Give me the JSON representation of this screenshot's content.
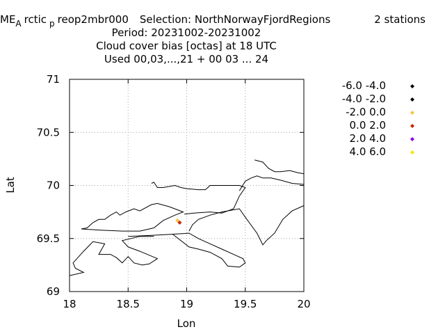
{
  "chart_data": {
    "type": "scatter",
    "title": {
      "line1_parts": [
        "ME",
        "A",
        "rctic",
        "p",
        "reop2mbr000"
      ],
      "selection": "Selection: NorthNorwayFjordRegions",
      "stations": "2 stations",
      "period": "Period: 20231002-20231002",
      "variable": "Cloud cover bias [octas] at  18 UTC",
      "used": "Used  00,03,...,21  + 00 03 ... 24"
    },
    "xlabel": "Lon",
    "ylabel": "Lat",
    "xlim": [
      18,
      20
    ],
    "ylim": [
      69,
      71
    ],
    "xticks": [
      "18",
      "18.5",
      "19",
      "19.5",
      "20"
    ],
    "yticks": [
      "69",
      "69.5",
      "70",
      "70.5",
      "71"
    ],
    "grid": true,
    "legend_position": "right",
    "legend": [
      {
        "label": "-6.0 -4.0",
        "color": "#000000"
      },
      {
        "label": "-4.0 -2.0",
        "color": "#000000"
      },
      {
        "label": "-2.0 0.0",
        "color": "#f5c542"
      },
      {
        "label": "0.0 2.0",
        "color": "#cc2200"
      },
      {
        "label": "2.0 4.0",
        "color": "#8a00e6"
      },
      {
        "label": "4.0 6.0",
        "color": "#f2e600"
      }
    ],
    "points": [
      {
        "lon": 18.92,
        "lat": 69.67,
        "color": "#f5c542"
      },
      {
        "lon": 18.94,
        "lat": 69.65,
        "color": "#cc2200"
      }
    ],
    "coastlines": [
      [
        [
          18.0,
          69.15
        ],
        [
          18.12,
          69.18
        ],
        [
          18.05,
          69.22
        ],
        [
          18.03,
          69.27
        ],
        [
          18.12,
          69.38
        ],
        [
          18.2,
          69.47
        ],
        [
          18.3,
          69.45
        ],
        [
          18.25,
          69.35
        ],
        [
          18.35,
          69.35
        ],
        [
          18.4,
          69.32
        ],
        [
          18.45,
          69.27
        ],
        [
          18.5,
          69.33
        ],
        [
          18.55,
          69.27
        ],
        [
          18.62,
          69.25
        ],
        [
          18.68,
          69.26
        ],
        [
          18.75,
          69.31
        ],
        [
          18.6,
          69.38
        ],
        [
          18.5,
          69.42
        ],
        [
          18.45,
          69.48
        ],
        [
          18.6,
          69.52
        ],
        [
          18.72,
          69.52
        ]
      ],
      [
        [
          18.88,
          69.54
        ],
        [
          19.02,
          69.42
        ],
        [
          19.1,
          69.4
        ],
        [
          19.2,
          69.37
        ],
        [
          19.3,
          69.31
        ],
        [
          19.35,
          69.24
        ],
        [
          19.45,
          69.23
        ],
        [
          19.5,
          69.27
        ],
        [
          19.48,
          69.31
        ],
        [
          19.4,
          69.35
        ],
        [
          19.3,
          69.4
        ],
        [
          19.2,
          69.45
        ],
        [
          19.1,
          69.5
        ],
        [
          19.02,
          69.55
        ],
        [
          18.88,
          69.54
        ],
        [
          18.7,
          69.53
        ],
        [
          18.5,
          69.52
        ]
      ],
      [
        [
          18.1,
          69.59
        ],
        [
          18.25,
          69.58
        ],
        [
          18.45,
          69.57
        ],
        [
          18.6,
          69.57
        ],
        [
          18.72,
          69.6
        ],
        [
          18.8,
          69.67
        ],
        [
          18.9,
          69.72
        ],
        [
          18.97,
          69.75
        ],
        [
          18.85,
          69.8
        ],
        [
          18.75,
          69.83
        ],
        [
          18.7,
          69.82
        ],
        [
          18.6,
          69.76
        ],
        [
          18.55,
          69.78
        ],
        [
          18.48,
          69.75
        ],
        [
          18.43,
          69.72
        ],
        [
          18.4,
          69.75
        ],
        [
          18.35,
          69.72
        ],
        [
          18.3,
          69.68
        ],
        [
          18.25,
          69.68
        ],
        [
          18.2,
          69.65
        ],
        [
          18.15,
          69.6
        ],
        [
          18.1,
          69.59
        ]
      ],
      [
        [
          18.98,
          69.73
        ],
        [
          19.06,
          69.74
        ],
        [
          19.2,
          69.75
        ],
        [
          19.3,
          69.74
        ],
        [
          19.4,
          69.78
        ],
        [
          19.45,
          69.9
        ],
        [
          19.5,
          69.98
        ],
        [
          19.45,
          70.0
        ],
        [
          19.3,
          70.0
        ],
        [
          19.2,
          70.0
        ],
        [
          19.16,
          69.96
        ],
        [
          19.1,
          69.96
        ],
        [
          19.0,
          69.97
        ],
        [
          18.95,
          69.98
        ],
        [
          18.9,
          70.0
        ],
        [
          18.8,
          69.98
        ],
        [
          18.75,
          69.98
        ],
        [
          18.72,
          70.03
        ],
        [
          18.7,
          70.02
        ]
      ],
      [
        [
          19.58,
          70.24
        ],
        [
          19.65,
          70.22
        ],
        [
          19.7,
          70.16
        ],
        [
          19.75,
          70.13
        ],
        [
          19.8,
          70.13
        ],
        [
          19.88,
          70.14
        ],
        [
          19.95,
          70.12
        ],
        [
          20.0,
          70.11
        ]
      ],
      [
        [
          20.0,
          70.01
        ],
        [
          19.9,
          70.02
        ],
        [
          19.8,
          70.05
        ],
        [
          19.72,
          70.07
        ],
        [
          19.65,
          70.07
        ],
        [
          19.6,
          70.09
        ],
        [
          19.55,
          70.07
        ],
        [
          19.5,
          70.04
        ],
        [
          19.45,
          69.95
        ]
      ],
      [
        [
          20.0,
          69.81
        ],
        [
          19.9,
          69.76
        ],
        [
          19.82,
          69.68
        ],
        [
          19.75,
          69.55
        ],
        [
          19.68,
          69.48
        ],
        [
          19.65,
          69.44
        ],
        [
          19.6,
          69.55
        ],
        [
          19.5,
          69.7
        ],
        [
          19.45,
          69.78
        ],
        [
          19.3,
          69.75
        ],
        [
          19.2,
          69.72
        ],
        [
          19.1,
          69.68
        ],
        [
          19.05,
          69.63
        ],
        [
          19.02,
          69.57
        ]
      ]
    ]
  }
}
